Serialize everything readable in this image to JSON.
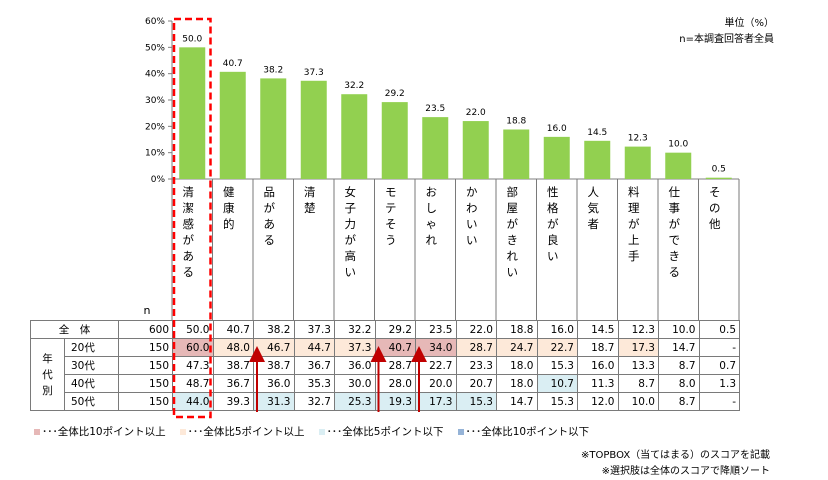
{
  "unit_label": "単位（%）",
  "n_label": "n=本調査回答者全員",
  "chart_data": {
    "type": "bar",
    "categories": [
      "清潔感がある",
      "健康的",
      "品がある",
      "清楚",
      "女子力が高い",
      "モテそう",
      "おしゃれ",
      "かわいい",
      "部屋がきれい",
      "性格が良い",
      "人気者",
      "料理が上手",
      "仕事ができる",
      "その他"
    ],
    "values": [
      50.0,
      40.7,
      38.2,
      37.3,
      32.2,
      29.2,
      23.5,
      22.0,
      18.8,
      16.0,
      14.5,
      12.3,
      10.0,
      0.5
    ],
    "value_labels": [
      "50.0",
      "40.7",
      "38.2",
      "37.3",
      "32.2",
      "29.2",
      "23.5",
      "22.0",
      "18.8",
      "16.0",
      "14.5",
      "12.3",
      "10.0",
      "0.5"
    ],
    "yticks": [
      "0%",
      "10%",
      "20%",
      "30%",
      "40%",
      "50%",
      "60%"
    ],
    "ylim": [
      0,
      60
    ],
    "bar_color": "#92D050"
  },
  "table": {
    "n_header": "n",
    "group_label": "年代別",
    "rows": [
      {
        "label": "全　体",
        "n": "600",
        "values": [
          "50.0",
          "40.7",
          "38.2",
          "37.3",
          "32.2",
          "29.2",
          "23.5",
          "22.0",
          "18.8",
          "16.0",
          "14.5",
          "12.3",
          "10.0",
          "0.5"
        ],
        "shade": [
          "",
          "",
          "",
          "",
          "",
          "",
          "",
          "",
          "",
          "",
          "",
          "",
          "",
          ""
        ]
      },
      {
        "label": "20代",
        "n": "150",
        "values": [
          "60.0",
          "48.0",
          "46.7",
          "44.7",
          "37.3",
          "40.7",
          "34.0",
          "28.7",
          "24.7",
          "22.7",
          "18.7",
          "17.3",
          "14.7",
          "-"
        ],
        "shade": [
          "h10",
          "h5",
          "h5",
          "h5",
          "h5",
          "h10",
          "h10",
          "h5",
          "h5",
          "h5",
          "",
          "h5",
          "",
          ""
        ]
      },
      {
        "label": "30代",
        "n": "150",
        "values": [
          "47.3",
          "38.7",
          "38.7",
          "36.7",
          "36.0",
          "28.7",
          "22.7",
          "23.3",
          "18.0",
          "15.3",
          "16.0",
          "13.3",
          "8.7",
          "0.7"
        ],
        "shade": [
          "",
          "",
          "",
          "",
          "",
          "",
          "",
          "",
          "",
          "",
          "",
          "",
          "",
          ""
        ]
      },
      {
        "label": "40代",
        "n": "150",
        "values": [
          "48.7",
          "36.7",
          "36.0",
          "35.3",
          "30.0",
          "28.0",
          "20.0",
          "20.7",
          "18.0",
          "10.7",
          "11.3",
          "8.7",
          "8.0",
          "1.3"
        ],
        "shade": [
          "",
          "",
          "",
          "",
          "",
          "",
          "",
          "",
          "",
          "l5",
          "",
          "",
          "",
          ""
        ]
      },
      {
        "label": "50代",
        "n": "150",
        "values": [
          "44.0",
          "39.3",
          "31.3",
          "32.7",
          "25.3",
          "19.3",
          "17.3",
          "15.3",
          "14.7",
          "15.3",
          "12.0",
          "10.0",
          "8.7",
          "-"
        ],
        "shade": [
          "l5",
          "",
          "l5",
          "",
          "l5",
          "l5",
          "l5",
          "l5",
          "",
          "",
          "",
          "",
          "",
          ""
        ]
      }
    ]
  },
  "shade_colors": {
    "h10": "#E6B8B7",
    "h5": "#FDE9D9",
    "l5": "#DAEEF3",
    "l10": "#95B3D7"
  },
  "legend": [
    {
      "key": "h10",
      "color": "#E6B8B7",
      "text": "･･･全体比10ポイント以上"
    },
    {
      "key": "h5",
      "color": "#FDE9D9",
      "text": "･･･全体比5ポイント以上"
    },
    {
      "key": "l5",
      "color": "#DAEEF3",
      "text": "･･･全体比5ポイント以下"
    },
    {
      "key": "l10",
      "color": "#95B3D7",
      "text": "･･･全体比10ポイント以下"
    }
  ],
  "notes": [
    "※TOPBOX（当てはまる）のスコアを記載",
    "※選択肢は全体のスコアで降順ソート"
  ],
  "highlight_color": "#FF0000",
  "arrow_color": "#C00000"
}
